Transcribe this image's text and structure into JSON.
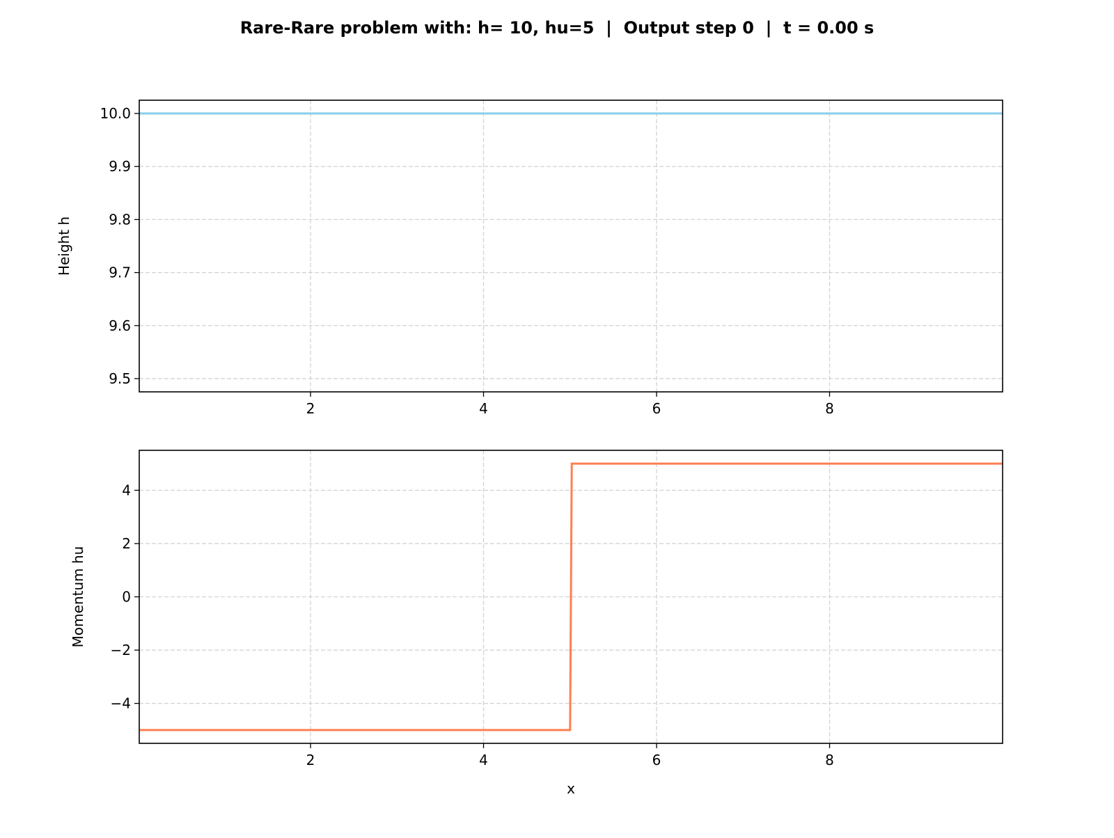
{
  "title": "Rare-Rare problem with: h= 10, hu=5  |  Output step 0  |  t = 0.00 s",
  "chart_data": [
    {
      "type": "line",
      "xlabel": "",
      "ylabel": "Height h",
      "xlim": [
        0.02,
        10.0
      ],
      "ylim": [
        9.475,
        10.025
      ],
      "xticks": [
        "2",
        "4",
        "6",
        "8"
      ],
      "yticks": [
        "9.5",
        "9.6",
        "9.7",
        "9.8",
        "9.9",
        "10.0"
      ],
      "grid": true,
      "series": [
        {
          "color": "#87CEEB",
          "x": [
            0.0,
            10.0
          ],
          "y": [
            10.0,
            10.0
          ]
        }
      ]
    },
    {
      "type": "line",
      "xlabel": "x",
      "ylabel": "Momentum hu",
      "xlim": [
        0.02,
        10.0
      ],
      "ylim": [
        -5.5,
        5.5
      ],
      "xticks": [
        "2",
        "4",
        "6",
        "8"
      ],
      "yticks": [
        "−4",
        "−2",
        "0",
        "2",
        "4"
      ],
      "grid": true,
      "series": [
        {
          "color": "#FF7F50",
          "x": [
            0.0,
            5.0,
            5.02,
            10.0
          ],
          "y": [
            -5,
            -5,
            5,
            5
          ]
        }
      ]
    }
  ]
}
